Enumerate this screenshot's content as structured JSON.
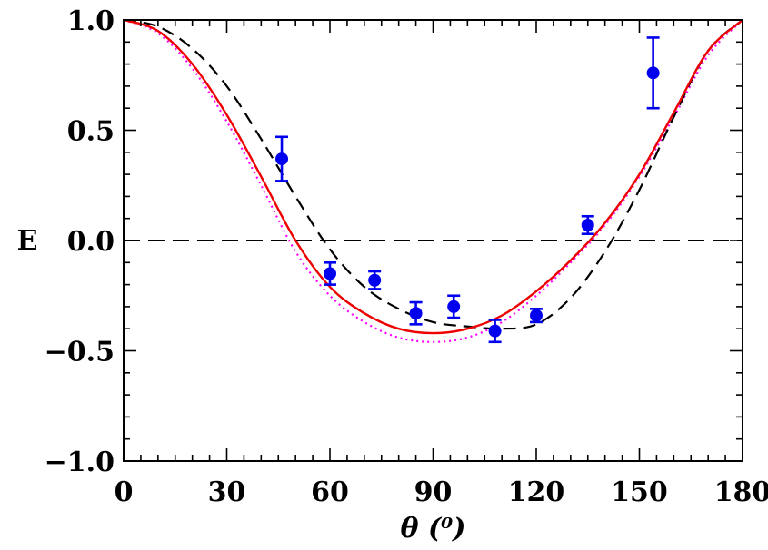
{
  "chart_data": {
    "type": "scatter",
    "title": "",
    "xlabel": "θ  (⁰)",
    "ylabel": "E",
    "xlim": [
      0,
      180
    ],
    "ylim": [
      -1.0,
      1.0
    ],
    "xticks": [
      0,
      30,
      60,
      90,
      120,
      150,
      180
    ],
    "xtick_labels": [
      "0",
      "30",
      "60",
      "90",
      "120",
      "150",
      "180"
    ],
    "yticks": [
      1.0,
      0.5,
      0.0,
      -0.5,
      -1.0
    ],
    "ytick_labels": [
      "1.0",
      "0.5",
      "0.0",
      "−0.5",
      "−1.0"
    ],
    "grid": false,
    "colors": {
      "points": "#0000ee",
      "red_curve": "#ee0000",
      "magenta_curve": "#ff00ff",
      "black_curve": "#000000",
      "zero_line": "#000000"
    },
    "points": {
      "name": "data",
      "x": [
        46,
        60,
        73,
        85,
        96,
        108,
        120,
        135,
        154
      ],
      "y": [
        0.37,
        -0.15,
        -0.18,
        -0.33,
        -0.3,
        -0.41,
        -0.34,
        0.07,
        0.76
      ],
      "err": [
        0.1,
        0.05,
        0.04,
        0.05,
        0.05,
        0.05,
        0.03,
        0.04,
        0.16
      ]
    },
    "series": [
      {
        "name": "red-solid",
        "style": "solid",
        "x": [
          0,
          10,
          20,
          30,
          40,
          50,
          60,
          70,
          80,
          90,
          100,
          110,
          120,
          130,
          140,
          150,
          160,
          170,
          180
        ],
        "y": [
          1.0,
          0.95,
          0.8,
          0.57,
          0.29,
          0.0,
          -0.21,
          -0.33,
          -0.4,
          -0.42,
          -0.4,
          -0.34,
          -0.23,
          -0.09,
          0.08,
          0.3,
          0.58,
          0.86,
          1.0
        ]
      },
      {
        "name": "magenta-dotted",
        "style": "dotted",
        "x": [
          0,
          10,
          20,
          30,
          40,
          50,
          60,
          70,
          80,
          90,
          100,
          110,
          120,
          130,
          140,
          150,
          160,
          170,
          180
        ],
        "y": [
          1.0,
          0.94,
          0.78,
          0.54,
          0.25,
          -0.05,
          -0.25,
          -0.37,
          -0.44,
          -0.46,
          -0.44,
          -0.37,
          -0.25,
          -0.1,
          0.07,
          0.29,
          0.56,
          0.84,
          1.0
        ]
      },
      {
        "name": "black-dashed",
        "style": "dashed",
        "x": [
          0,
          10,
          20,
          30,
          40,
          50,
          60,
          70,
          80,
          90,
          100,
          110,
          120,
          130,
          140,
          150,
          160,
          170,
          180
        ],
        "y": [
          1.0,
          0.97,
          0.87,
          0.7,
          0.46,
          0.2,
          -0.04,
          -0.21,
          -0.31,
          -0.37,
          -0.39,
          -0.4,
          -0.38,
          -0.26,
          -0.05,
          0.23,
          0.56,
          0.86,
          1.0
        ]
      }
    ],
    "reference_line": {
      "y": 0.0,
      "style": "dashed"
    }
  }
}
